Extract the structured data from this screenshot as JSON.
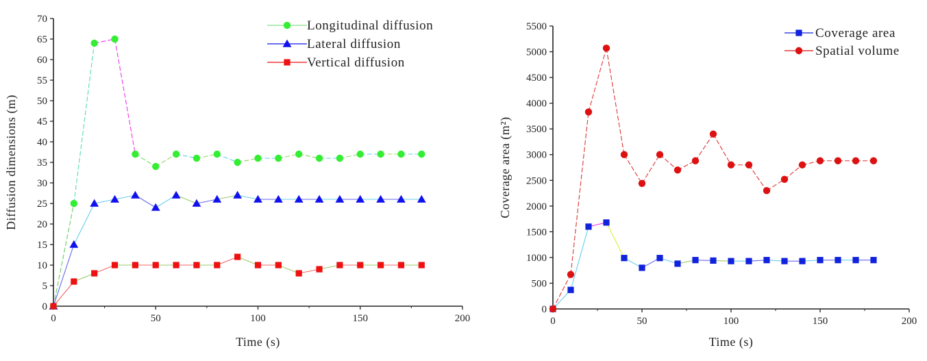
{
  "chart_data": [
    {
      "type": "line",
      "xlabel": "Time (s)",
      "ylabel": "Diffusion dimensions (m)",
      "xlim": [
        0,
        200
      ],
      "ylim": [
        0,
        70
      ],
      "x_ticks": [
        0,
        50,
        100,
        150,
        200
      ],
      "y_ticks": [
        0,
        5,
        10,
        15,
        20,
        25,
        30,
        35,
        40,
        45,
        50,
        55,
        60,
        65,
        70
      ],
      "x_tick_labels": [
        "0",
        "50",
        "100",
        "150",
        "200"
      ],
      "y_tick_labels": [
        "0",
        "5",
        "10",
        "15",
        "20",
        "25",
        "30",
        "35",
        "40",
        "45",
        "50",
        "55",
        "60",
        "65",
        "70"
      ],
      "grid": false,
      "legend_position": "top-right",
      "x": [
        0,
        10,
        20,
        30,
        40,
        50,
        60,
        70,
        80,
        90,
        100,
        110,
        120,
        130,
        140,
        150,
        160,
        170,
        180
      ],
      "series": [
        {
          "name": "Longitudinal diffusion",
          "marker": "circle",
          "color": "#33ee33",
          "values": [
            0,
            25,
            64,
            65,
            37,
            34,
            37,
            36,
            37,
            35,
            36,
            36,
            37,
            36,
            36,
            37,
            37,
            37,
            37
          ]
        },
        {
          "name": "Lateral diffusion",
          "marker": "triangle",
          "color": "#1111ee",
          "values": [
            0,
            15,
            25,
            26,
            27,
            24,
            27,
            25,
            26,
            27,
            26,
            26,
            26,
            26,
            26,
            26,
            26,
            26,
            26
          ]
        },
        {
          "name": "Vertical diffusion",
          "marker": "square",
          "color": "#ee1111",
          "values": [
            0,
            6,
            8,
            10,
            10,
            10,
            10,
            10,
            10,
            12,
            10,
            10,
            8,
            9,
            10,
            10,
            10,
            10,
            10
          ]
        }
      ]
    },
    {
      "type": "line",
      "xlabel": "Time (s)",
      "ylabel": "Coverage area (m²)",
      "xlim": [
        0,
        200
      ],
      "ylim": [
        0,
        5500
      ],
      "x_ticks": [
        0,
        50,
        100,
        150,
        200
      ],
      "y_ticks": [
        0,
        500,
        1000,
        1500,
        2000,
        2500,
        3000,
        3500,
        4000,
        4500,
        5000,
        5500
      ],
      "x_tick_labels": [
        "0",
        "50",
        "100",
        "150",
        "200"
      ],
      "y_tick_labels": [
        "0",
        "500",
        "1000",
        "1500",
        "2000",
        "2500",
        "3000",
        "3500",
        "4000",
        "4500",
        "5000",
        "5500"
      ],
      "grid": false,
      "legend_position": "top-right",
      "x": [
        0,
        10,
        20,
        30,
        40,
        50,
        60,
        70,
        80,
        90,
        100,
        110,
        120,
        130,
        140,
        150,
        160,
        170,
        180
      ],
      "series": [
        {
          "name": "Coverage area",
          "marker": "square",
          "color": "#1122dd",
          "values": [
            0,
            370,
            1600,
            1680,
            990,
            800,
            990,
            880,
            950,
            940,
            930,
            930,
            950,
            930,
            930,
            950,
            950,
            950,
            950
          ]
        },
        {
          "name": "Spatial volume",
          "marker": "circle",
          "color": "#dd1111",
          "values": [
            0,
            670,
            3830,
            5070,
            3000,
            2440,
            3000,
            2700,
            2880,
            3400,
            2800,
            2800,
            2300,
            2520,
            2800,
            2880,
            2880,
            2880,
            2880
          ]
        }
      ]
    }
  ]
}
